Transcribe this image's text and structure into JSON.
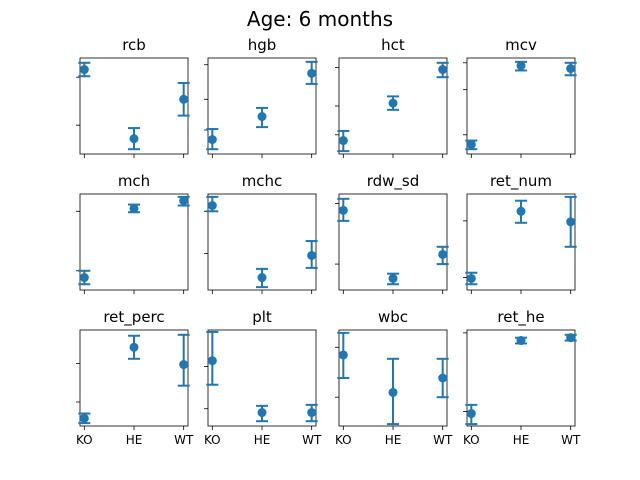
{
  "figure_title": "Age: 6 months",
  "chart_data": {
    "type": "scatter",
    "categories": [
      "KO",
      "HE",
      "WT"
    ],
    "grid": false,
    "panels": [
      {
        "title": "rcb",
        "ylim": [
          0,
          1
        ],
        "yticks": [
          0.3,
          0.8
        ],
        "mean": [
          0.88,
          0.16,
          0.57
        ],
        "lower": [
          0.81,
          0.05,
          0.4
        ],
        "upper": [
          0.95,
          0.27,
          0.74
        ]
      },
      {
        "title": "hgb",
        "ylim": [
          0,
          1
        ],
        "yticks": [
          0.25,
          0.57,
          0.93
        ],
        "mean": [
          0.15,
          0.39,
          0.84
        ],
        "lower": [
          0.05,
          0.28,
          0.73
        ],
        "upper": [
          0.26,
          0.48,
          0.96
        ]
      },
      {
        "title": "hct",
        "ylim": [
          0,
          1
        ],
        "yticks": [
          0.2,
          0.5,
          0.9
        ],
        "mean": [
          0.14,
          0.53,
          0.88
        ],
        "lower": [
          0.03,
          0.46,
          0.8
        ],
        "upper": [
          0.24,
          0.6,
          0.95
        ]
      },
      {
        "title": "mcv",
        "ylim": [
          0,
          1
        ],
        "yticks": [
          0.2,
          0.67,
          0.95
        ],
        "mean": [
          0.1,
          0.92,
          0.89
        ],
        "lower": [
          0.05,
          0.87,
          0.82
        ],
        "upper": [
          0.14,
          0.96,
          0.95
        ]
      },
      {
        "title": "mch",
        "ylim": [
          0,
          1
        ],
        "yticks": [
          0.2,
          0.82
        ],
        "mean": [
          0.13,
          0.85,
          0.93
        ],
        "lower": [
          0.06,
          0.81,
          0.88
        ],
        "upper": [
          0.2,
          0.89,
          0.97
        ]
      },
      {
        "title": "mchc",
        "ylim": [
          0,
          1
        ],
        "yticks": [
          0.38,
          0.82
        ],
        "mean": [
          0.88,
          0.13,
          0.36
        ],
        "lower": [
          0.82,
          0.03,
          0.23
        ],
        "upper": [
          0.97,
          0.22,
          0.51
        ]
      },
      {
        "title": "rdw_sd",
        "ylim": [
          0,
          1
        ],
        "yticks": [
          0.27,
          0.9
        ],
        "mean": [
          0.83,
          0.12,
          0.37
        ],
        "lower": [
          0.72,
          0.06,
          0.27
        ],
        "upper": [
          0.95,
          0.17,
          0.45
        ]
      },
      {
        "title": "ret_num",
        "ylim": [
          0,
          1
        ],
        "yticks": [
          0.13,
          0.72
        ],
        "mean": [
          0.12,
          0.82,
          0.71
        ],
        "lower": [
          0.06,
          0.7,
          0.45
        ],
        "upper": [
          0.18,
          0.93,
          0.97
        ]
      },
      {
        "title": "ret_perc",
        "ylim": [
          0,
          1
        ],
        "yticks": [
          0.25,
          0.65
        ],
        "mean": [
          0.08,
          0.82,
          0.64
        ],
        "lower": [
          0.03,
          0.7,
          0.42
        ],
        "upper": [
          0.13,
          0.94,
          0.95
        ]
      },
      {
        "title": "plt",
        "ylim": [
          0,
          1
        ],
        "yticks": [
          0.18,
          0.62
        ],
        "mean": [
          0.68,
          0.14,
          0.14
        ],
        "lower": [
          0.43,
          0.05,
          0.05
        ],
        "upper": [
          0.98,
          0.21,
          0.22
        ]
      },
      {
        "title": "wbc",
        "ylim": [
          0,
          1
        ],
        "yticks": [
          0.3,
          0.82
        ],
        "mean": [
          0.74,
          0.35,
          0.5
        ],
        "lower": [
          0.5,
          0.02,
          0.3
        ],
        "upper": [
          0.97,
          0.7,
          0.7
        ]
      },
      {
        "title": "ret_he",
        "ylim": [
          0,
          1
        ],
        "yticks": [
          0.15,
          0.97
        ],
        "mean": [
          0.13,
          0.89,
          0.92
        ],
        "lower": [
          0.02,
          0.86,
          0.89
        ],
        "upper": [
          0.22,
          0.92,
          0.95
        ]
      }
    ]
  }
}
